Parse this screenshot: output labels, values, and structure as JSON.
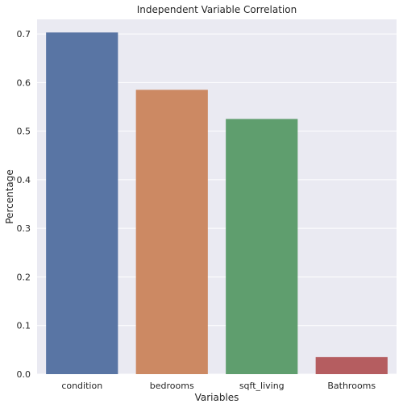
{
  "chart_data": {
    "type": "bar",
    "title": "Independent Variable Correlation",
    "xlabel": "Variables",
    "ylabel": "Percentage",
    "categories": [
      "condition",
      "bedrooms",
      "sqft_living",
      "Bathrooms"
    ],
    "values": [
      0.703,
      0.585,
      0.525,
      0.035
    ],
    "ylim": [
      0,
      0.73
    ],
    "yticks": [
      "0.0",
      "0.1",
      "0.2",
      "0.3",
      "0.4",
      "0.5",
      "0.6",
      "0.7"
    ],
    "colors": [
      "#5975a4",
      "#cc8963",
      "#5f9e6e",
      "#b55d60"
    ],
    "background": "#eaeaf2",
    "grid": true,
    "legend": "none"
  }
}
